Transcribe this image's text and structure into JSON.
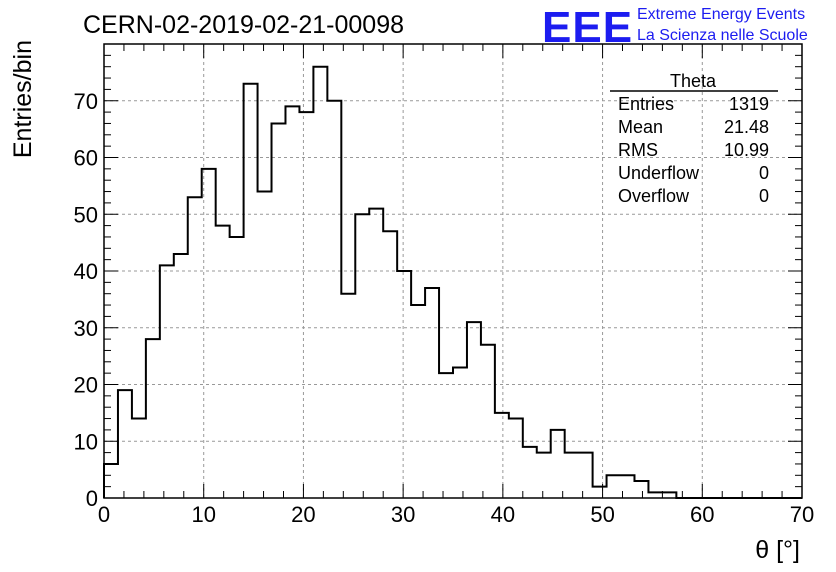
{
  "chart_data": {
    "type": "bar",
    "title": "CERN-02-2019-02-21-00098",
    "xlabel": "θ [°]",
    "ylabel": "Entries/bin",
    "xlim": [
      0,
      70
    ],
    "ylim": [
      0,
      80
    ],
    "grid": true,
    "bin_width": 1.4,
    "bin_start": 0,
    "values": [
      6,
      19,
      14,
      28,
      41,
      43,
      53,
      58,
      48,
      46,
      73,
      54,
      66,
      69,
      68,
      76,
      70,
      36,
      50,
      51,
      47,
      40,
      34,
      37,
      22,
      23,
      31,
      27,
      15,
      14,
      9,
      8,
      12,
      8,
      8,
      2,
      4,
      4,
      3,
      1,
      1,
      0,
      0,
      0,
      0,
      0,
      0,
      0,
      0,
      0
    ],
    "x_ticks": [
      "0",
      "10",
      "20",
      "30",
      "40",
      "50",
      "60",
      "70"
    ],
    "y_ticks": [
      "0",
      "10",
      "20",
      "30",
      "40",
      "50",
      "60",
      "70"
    ],
    "stats_box": {
      "title": "Theta",
      "rows": [
        {
          "label": "Entries",
          "value": "1319"
        },
        {
          "label": "Mean",
          "value": "21.48"
        },
        {
          "label": "RMS",
          "value": "10.99"
        },
        {
          "label": "Underflow",
          "value": "0"
        },
        {
          "label": "Overflow",
          "value": "0"
        }
      ]
    }
  },
  "logo": {
    "text": "EEE",
    "line1": "Extreme Energy Events",
    "line2": "La Scienza nelle Scuole",
    "color": "#1c1cf0"
  }
}
